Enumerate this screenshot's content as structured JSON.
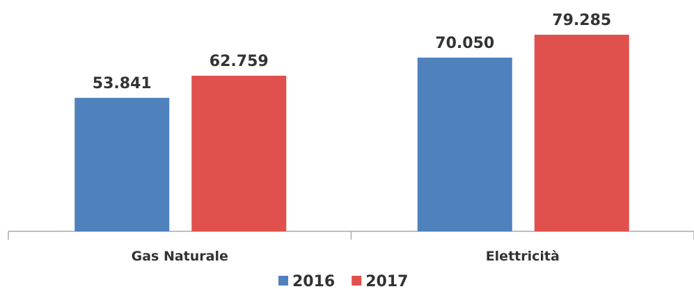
{
  "chart_data": {
    "type": "bar",
    "categories": [
      "Gas Naturale",
      "Elettricità"
    ],
    "series": [
      {
        "name": "2016",
        "color": "#4f81bd",
        "values": [
          53841,
          70050
        ],
        "value_labels": [
          "53.841",
          "70.050"
        ]
      },
      {
        "name": "2017",
        "color": "#e0504d",
        "values": [
          62759,
          79285
        ],
        "value_labels": [
          "62.759",
          "79.285"
        ]
      }
    ],
    "legend": "bottom"
  }
}
